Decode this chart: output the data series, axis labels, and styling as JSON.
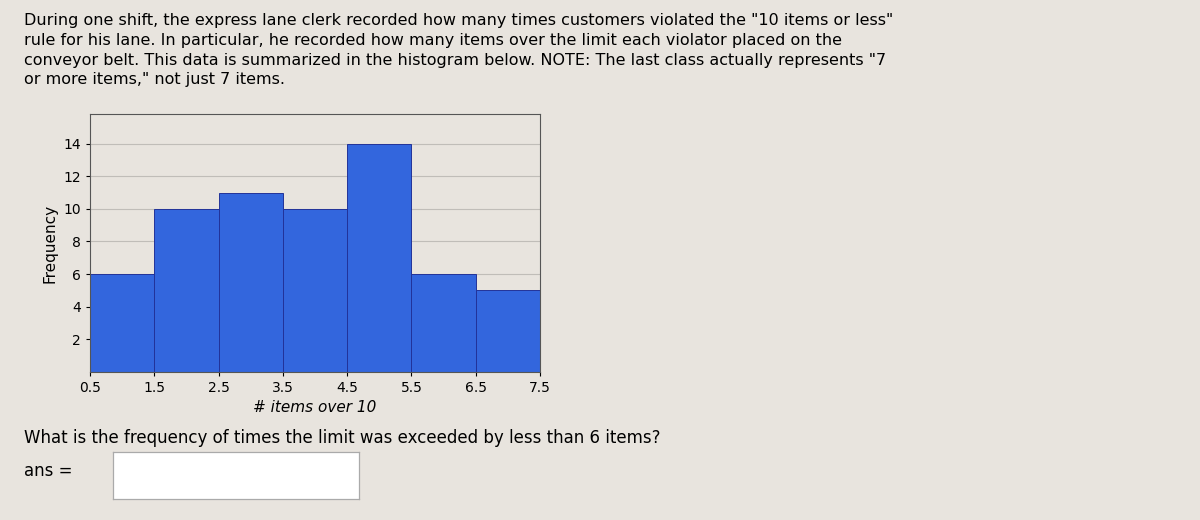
{
  "bar_centers": [
    1,
    2,
    3,
    4,
    5,
    6,
    7
  ],
  "bar_heights": [
    6,
    10,
    11,
    10,
    14,
    6,
    5
  ],
  "bar_width": 1.0,
  "bar_color": "#3366dd",
  "bar_edgecolor": "#223399",
  "xlim": [
    0.5,
    7.5
  ],
  "ylim": [
    0,
    15
  ],
  "xticks": [
    0.5,
    1.5,
    2.5,
    3.5,
    4.5,
    5.5,
    6.5,
    7.5
  ],
  "xtick_labels": [
    "0.5",
    "1.5",
    "2.5",
    "3.5",
    "4.5",
    "5.5",
    "6.5",
    "7.5"
  ],
  "yticks": [
    2,
    4,
    6,
    8,
    10,
    12,
    14
  ],
  "xlabel": "# items over 10",
  "ylabel": "Frequency",
  "title_line1": "During one shift, the express lane clerk recorded how many times customers violated the \"10 items or less\"",
  "title_line2": "rule for his lane. In particular, he recorded how many items over the limit each violator placed on the",
  "title_line3": "conveyor belt. This data is summarized in the histogram below. NOTE: The last class actually represents \"7",
  "title_line4": "or more items,\" not just 7 items.",
  "question_text": "What is the frequency of times the limit was exceeded by less than 6 items?",
  "ans_label": "ans =",
  "bg_color": "#e8e4de",
  "grid_color": "#c0bdb8",
  "fig_width": 12.0,
  "fig_height": 5.2,
  "title_fontsize": 11.5,
  "axis_fontsize": 10,
  "question_fontsize": 12,
  "ans_fontsize": 12
}
